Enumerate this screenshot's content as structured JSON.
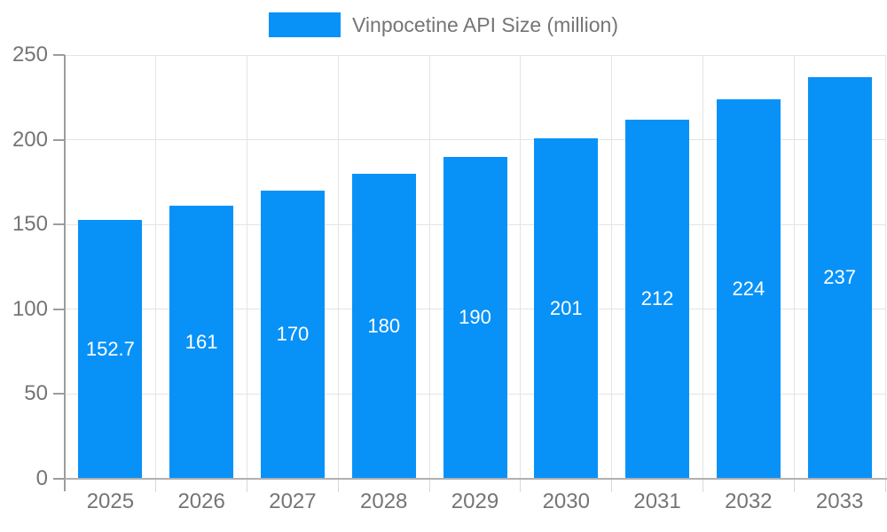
{
  "legend": {
    "label": "Vinpocetine API Size (million)"
  },
  "chart_data": {
    "type": "bar",
    "title": "",
    "series_name": "Vinpocetine API Size (million)",
    "categories": [
      "2025",
      "2026",
      "2027",
      "2028",
      "2029",
      "2030",
      "2031",
      "2032",
      "2033"
    ],
    "values": [
      152.7,
      161,
      170,
      180,
      190,
      201,
      212,
      224,
      237
    ],
    "value_labels": [
      "152.7",
      "161",
      "170",
      "180",
      "190",
      "201",
      "212",
      "224",
      "237"
    ],
    "xlabel": "",
    "ylabel": "",
    "ylim": [
      0,
      250
    ],
    "yticks": [
      0,
      50,
      100,
      150,
      200,
      250
    ],
    "grid": true,
    "legend_position": "top",
    "value_label_position": "center-inside"
  },
  "colors": {
    "bar": "#0892f8",
    "grid": "#e4e4e4",
    "y_axis": "#9c9c9c",
    "x_axis": "#b0b0b0",
    "y_tick": "#9c9c9c",
    "x_tick": "#d8d8d8",
    "label_text": "#757575",
    "value_text": "#ffffff",
    "background": "#ffffff"
  }
}
